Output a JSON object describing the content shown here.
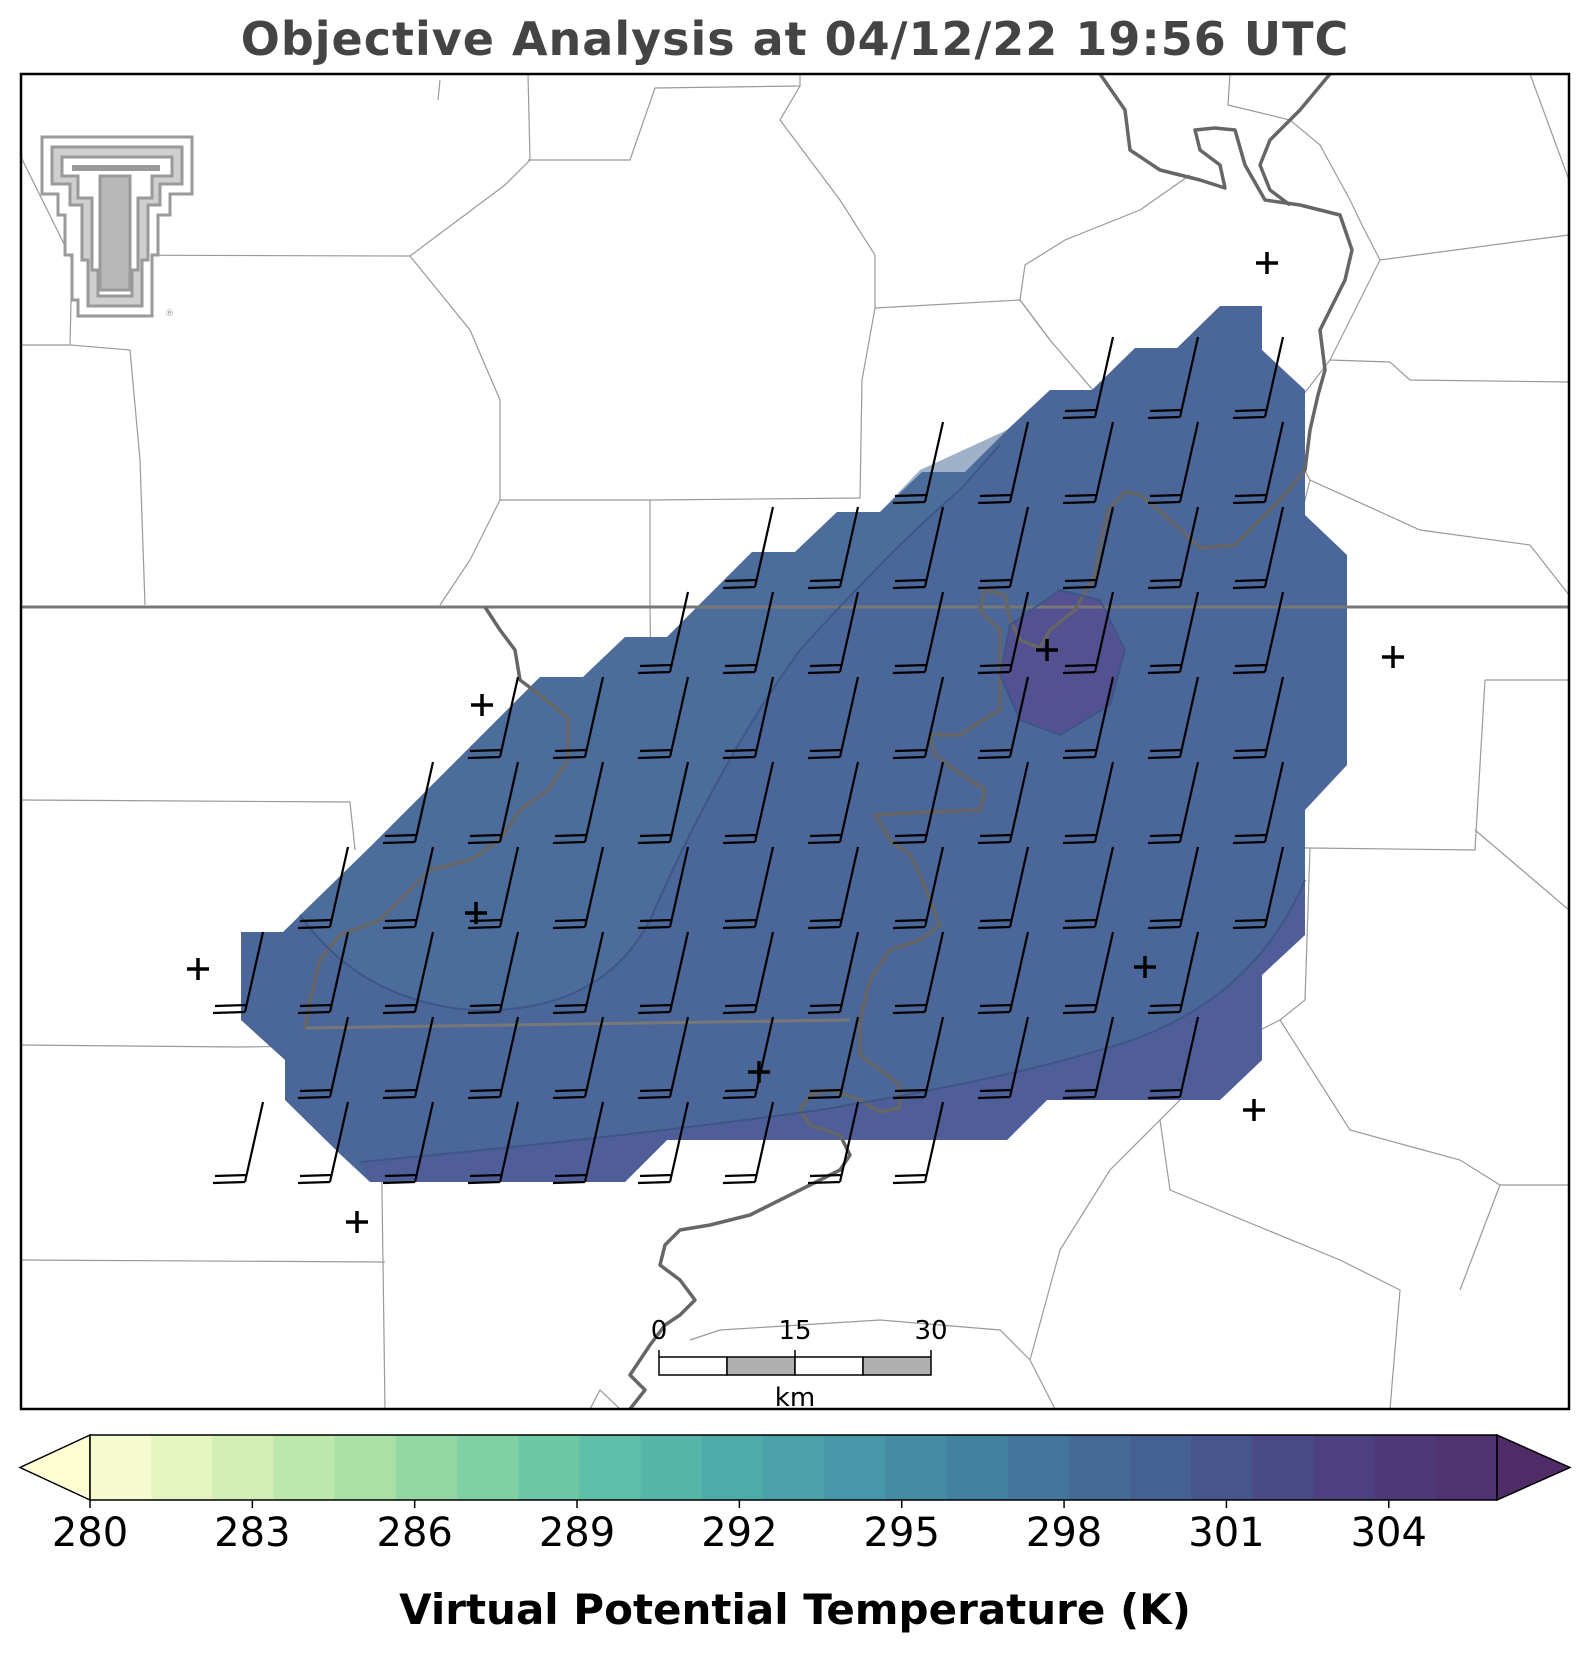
{
  "title": "Objective Analysis at 04/12/22 19:56 UTC",
  "colorbar": {
    "title": "Virtual Potential Temperature (K)",
    "tick_labels": [
      "280",
      "283",
      "286",
      "289",
      "292",
      "295",
      "298",
      "301",
      "304"
    ],
    "min": 280,
    "max": 306,
    "step": 1,
    "extend": "both",
    "colors": [
      "#fffdd2",
      "#f6fbcf",
      "#e5f5c0",
      "#d2efb5",
      "#bde8ab",
      "#a8e0a6",
      "#93d8a2",
      "#7fd0a3",
      "#6dc8a6",
      "#60bfa8",
      "#56b5a9",
      "#4fabaa",
      "#4aa1a9",
      "#4697a7",
      "#448ca4",
      "#4381a1",
      "#43769d",
      "#446b98",
      "#456093",
      "#47558d",
      "#4a4a86",
      "#4c4080",
      "#4e3878",
      "#4f3270",
      "#4f2c67"
    ]
  },
  "analysis": {
    "field_color": "#4b6699",
    "warm_core_color": "#554e91",
    "contour_color": "#3c5585"
  },
  "scale_bar": {
    "unit": "km",
    "labels": [
      "0",
      "15",
      "30"
    ]
  },
  "logo": {
    "text": "TT",
    "registered": "®"
  }
}
